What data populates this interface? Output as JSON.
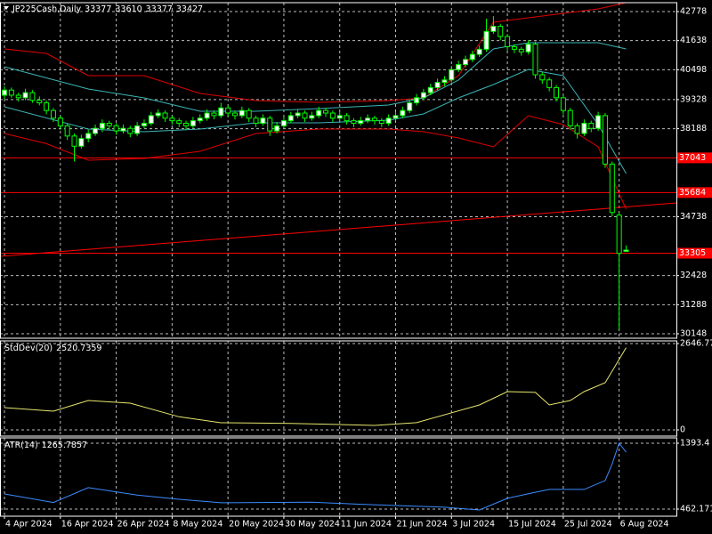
{
  "chart_data": [
    {
      "type": "candlestick",
      "title": "JP225Cash,Daily",
      "candles": [
        [
          39500,
          39850,
          39350,
          39700
        ],
        [
          39700,
          39800,
          39400,
          39500
        ],
        [
          39500,
          39600,
          39250,
          39400
        ],
        [
          39400,
          39750,
          39300,
          39600
        ],
        [
          39600,
          39700,
          39200,
          39300
        ],
        [
          39300,
          39450,
          39100,
          39200
        ],
        [
          39200,
          39300,
          38750,
          38900
        ],
        [
          38900,
          39000,
          38450,
          38600
        ],
        [
          38600,
          38700,
          38150,
          38300
        ],
        [
          38300,
          38400,
          37750,
          37900
        ],
        [
          37900,
          38000,
          36900,
          37500
        ],
        [
          37500,
          37950,
          37400,
          37800
        ],
        [
          37800,
          38150,
          37650,
          38000
        ],
        [
          38000,
          38350,
          37900,
          38200
        ],
        [
          38200,
          38550,
          38050,
          38400
        ],
        [
          38400,
          38500,
          38150,
          38300
        ],
        [
          38300,
          38400,
          37950,
          38100
        ],
        [
          38100,
          38350,
          38000,
          38200
        ],
        [
          38200,
          38300,
          37850,
          38000
        ],
        [
          38000,
          38450,
          37900,
          38300
        ],
        [
          38300,
          38550,
          38200,
          38400
        ],
        [
          38400,
          38850,
          38300,
          38700
        ],
        [
          38700,
          38950,
          38600,
          38800
        ],
        [
          38800,
          38900,
          38450,
          38600
        ],
        [
          38600,
          38700,
          38350,
          38500
        ],
        [
          38500,
          38600,
          38250,
          38400
        ],
        [
          38400,
          38500,
          38150,
          38300
        ],
        [
          38300,
          38650,
          38200,
          38500
        ],
        [
          38500,
          38750,
          38400,
          38600
        ],
        [
          38600,
          38950,
          38500,
          38800
        ],
        [
          38800,
          38900,
          38550,
          38700
        ],
        [
          38700,
          39200,
          38600,
          39000
        ],
        [
          39000,
          39100,
          38650,
          38800
        ],
        [
          38800,
          38900,
          38550,
          38700
        ],
        [
          38700,
          39050,
          38600,
          38900
        ],
        [
          38900,
          39000,
          38450,
          38600
        ],
        [
          38600,
          38700,
          38250,
          38400
        ],
        [
          38400,
          38750,
          38300,
          38600
        ],
        [
          38600,
          38700,
          37900,
          38100
        ],
        [
          38100,
          38450,
          38000,
          38300
        ],
        [
          38300,
          38650,
          38200,
          38500
        ],
        [
          38500,
          38850,
          38400,
          38700
        ],
        [
          38700,
          38950,
          38600,
          38800
        ],
        [
          38800,
          38900,
          38450,
          38600
        ],
        [
          38600,
          38850,
          38500,
          38700
        ],
        [
          38700,
          39050,
          38600,
          38900
        ],
        [
          38900,
          39000,
          38650,
          38800
        ],
        [
          38800,
          38900,
          38450,
          38600
        ],
        [
          38600,
          38850,
          38500,
          38700
        ],
        [
          38700,
          38800,
          38350,
          38500
        ],
        [
          38500,
          38600,
          38250,
          38400
        ],
        [
          38400,
          38650,
          38300,
          38500
        ],
        [
          38500,
          38750,
          38400,
          38600
        ],
        [
          38600,
          38700,
          38350,
          38500
        ],
        [
          38500,
          38600,
          38250,
          38400
        ],
        [
          38400,
          38750,
          38300,
          38600
        ],
        [
          38600,
          38850,
          38500,
          38700
        ],
        [
          38700,
          39050,
          38600,
          38900
        ],
        [
          38900,
          39350,
          38800,
          39200
        ],
        [
          39200,
          39550,
          39100,
          39400
        ],
        [
          39400,
          39750,
          39300,
          39600
        ],
        [
          39600,
          39950,
          39500,
          39800
        ],
        [
          39800,
          40150,
          39700,
          40000
        ],
        [
          40000,
          40250,
          39850,
          40100
        ],
        [
          40100,
          40650,
          40000,
          40500
        ],
        [
          40500,
          40850,
          40400,
          40700
        ],
        [
          40700,
          41050,
          40600,
          40900
        ],
        [
          40900,
          41250,
          40800,
          41100
        ],
        [
          41100,
          41450,
          41000,
          41300
        ],
        [
          41300,
          42500,
          41200,
          42000
        ],
        [
          42000,
          42600,
          41900,
          42200
        ],
        [
          42200,
          42300,
          41650,
          41800
        ],
        [
          41800,
          41900,
          41250,
          41400
        ],
        [
          41400,
          41500,
          41150,
          41300
        ],
        [
          41300,
          41400,
          41050,
          41200
        ],
        [
          41200,
          41650,
          41100,
          41500
        ],
        [
          41500,
          41600,
          40150,
          40300
        ],
        [
          40300,
          40400,
          39950,
          40100
        ],
        [
          40100,
          40200,
          39650,
          39800
        ],
        [
          39800,
          39900,
          39250,
          39400
        ],
        [
          39400,
          39500,
          38750,
          38900
        ],
        [
          38900,
          39000,
          38150,
          38300
        ],
        [
          38300,
          38400,
          37800,
          38000
        ],
        [
          38000,
          38550,
          37900,
          38400
        ],
        [
          38400,
          38500,
          38050,
          38200
        ],
        [
          38200,
          38850,
          38100,
          38700
        ],
        [
          38700,
          38800,
          36650,
          36800
        ],
        [
          36800,
          36900,
          34750,
          34900
        ],
        [
          34800,
          34900,
          30300,
          33300
        ],
        [
          33377,
          33610,
          33377,
          33427
        ]
      ],
      "bull_color": "#ffffff",
      "bear_color": "#000000",
      "wick_color": "#00ff00",
      "series": [
        {
          "color": "#e00000",
          "x": [
            0,
            6,
            12,
            20,
            28,
            36,
            45,
            55,
            60,
            65,
            70,
            75,
            80,
            85,
            89
          ],
          "values": [
            41313,
            41138,
            40266,
            40266,
            39568,
            39289,
            39219,
            39289,
            39394,
            40266,
            42359,
            42533,
            42708,
            42883,
            43127
          ]
        },
        {
          "color": "#e00000",
          "x": [
            0,
            6,
            12,
            20,
            28,
            36,
            45,
            55,
            60,
            65,
            70,
            75,
            80,
            85,
            89
          ],
          "values": [
            37998,
            37600,
            36951,
            37021,
            37300,
            37998,
            38172,
            38172,
            38068,
            37823,
            37475,
            38696,
            38347,
            37475,
            35032
          ]
        },
        {
          "color": "#3cb4b4",
          "x": [
            0,
            12,
            20,
            28,
            36,
            45,
            55,
            60,
            65,
            70,
            75,
            80,
            85,
            89
          ],
          "values": [
            40615,
            39743,
            39394,
            38870,
            38870,
            38975,
            39115,
            39394,
            40092,
            41313,
            41557,
            41557,
            41557,
            41313
          ]
        },
        {
          "color": "#3cb4b4",
          "x": [
            0,
            12,
            20,
            28,
            36,
            45,
            55,
            60,
            65,
            70,
            75,
            80,
            85,
            89
          ],
          "values": [
            39045,
            38172,
            38068,
            38172,
            38417,
            38417,
            38521,
            38766,
            39394,
            39917,
            40510,
            40266,
            38347,
            36428
          ]
        }
      ],
      "levels": [
        37043,
        35684,
        33305
      ],
      "level_color": "#ff0000",
      "trendline": {
        "x": [
          -0.64,
          96.2
        ],
        "values": [
          33183,
          35277
        ]
      },
      "xlim": [
        -0.64,
        96.2
      ],
      "ylim": [
        29974,
        43127
      ],
      "yticks": [
        42778,
        41638,
        40498,
        39328,
        38188,
        34738,
        32428,
        31288,
        30148
      ],
      "grid": true
    },
    {
      "type": "line",
      "title": "StdDev(20)",
      "series": [
        {
          "color": "#e6e66e",
          "x": [
            0,
            7,
            12,
            18,
            25,
            31,
            41,
            53,
            59,
            68,
            72,
            76,
            78,
            81,
            83,
            86,
            87,
            89
          ],
          "values": [
            683,
            573,
            900,
            820,
            400,
            218,
            200,
            136,
            220,
            764,
            1174,
            1150,
            764,
            900,
            1174,
            1447,
            1800,
            2520.7359
          ]
        }
      ],
      "xlim": [
        -0.64,
        96.2
      ],
      "ylim": [
        -191,
        2729
      ],
      "yticks": [
        0,
        2646.772
      ],
      "grid": true
    },
    {
      "type": "line",
      "title": "ATR(14)",
      "series": [
        {
          "color": "#3c8cff",
          "x": [
            0,
            7,
            12,
            19,
            25,
            31,
            44,
            51,
            63,
            68,
            72,
            76,
            78,
            83,
            86,
            87,
            88,
            89
          ],
          "values": [
            676,
            555,
            766,
            660,
            600,
            551,
            560,
            530,
            488,
            450,
            614,
            700,
            740,
            740,
            866,
            1100,
            1393,
            1265.7857
          ]
        }
      ],
      "xlim": [
        -0.64,
        96.2
      ],
      "ylim": [
        361.5,
        1469
      ],
      "yticks": [
        462.1714,
        1393.4
      ],
      "grid": true,
      "xticks": [
        {
          "value": 0,
          "label": "4 Apr 2024"
        },
        {
          "value": 8,
          "label": "16 Apr 2024"
        },
        {
          "value": 16,
          "label": "26 Apr 2024"
        },
        {
          "value": 24,
          "label": "8 May 2024"
        },
        {
          "value": 32,
          "label": "20 May 2024"
        },
        {
          "value": 40,
          "label": "30 May 2024"
        },
        {
          "value": 48,
          "label": "11 Jun 2024"
        },
        {
          "value": 56,
          "label": "21 Jun 2024"
        },
        {
          "value": 64,
          "label": "3 Jul 2024"
        },
        {
          "value": 72,
          "label": "15 Jul 2024"
        },
        {
          "value": 80,
          "label": "25 Jul 2024"
        },
        {
          "value": 88,
          "label": "6 Aug 2024"
        }
      ]
    }
  ]
}
